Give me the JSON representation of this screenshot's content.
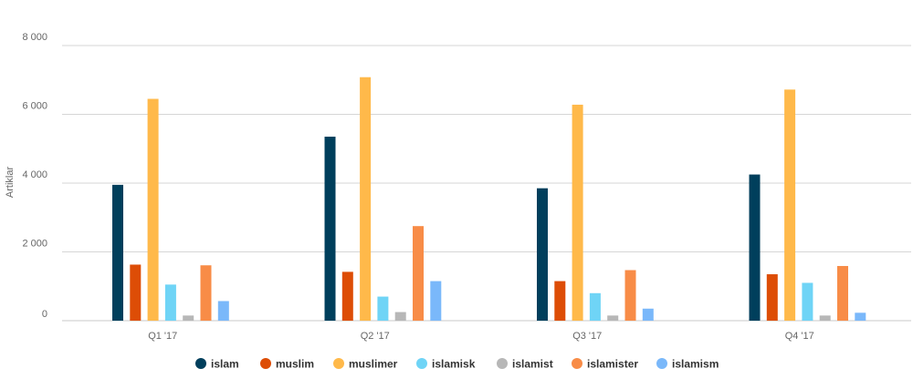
{
  "chart_data": {
    "type": "bar",
    "ylabel": "Artiklar",
    "ylim": [
      0,
      8000
    ],
    "yticks": [
      0,
      2000,
      4000,
      6000,
      8000
    ],
    "ytick_labels": [
      "0",
      "2 000",
      "4 000",
      "6 000",
      "8 000"
    ],
    "grid": true,
    "legend_position": "bottom",
    "categories": [
      "Q1 '17",
      "Q2 '17",
      "Q3 '17",
      "Q4 '17"
    ],
    "series": [
      {
        "name": "islam",
        "color": "#003f5c",
        "values": [
          3950,
          5350,
          3850,
          4250
        ]
      },
      {
        "name": "muslim",
        "color": "#dd4d06",
        "values": [
          1630,
          1420,
          1150,
          1350
        ]
      },
      {
        "name": "muslimer",
        "color": "#ffb94a",
        "values": [
          6450,
          7080,
          6280,
          6720
        ]
      },
      {
        "name": "islamisk",
        "color": "#6fd4f6",
        "values": [
          1050,
          700,
          800,
          1100
        ]
      },
      {
        "name": "islamist",
        "color": "#b7b7b7",
        "values": [
          150,
          250,
          150,
          150
        ]
      },
      {
        "name": "islamister",
        "color": "#f88c47",
        "values": [
          1610,
          2750,
          1470,
          1590
        ]
      },
      {
        "name": "islamism",
        "color": "#7ab8fa",
        "values": [
          570,
          1150,
          350,
          230
        ]
      }
    ]
  }
}
